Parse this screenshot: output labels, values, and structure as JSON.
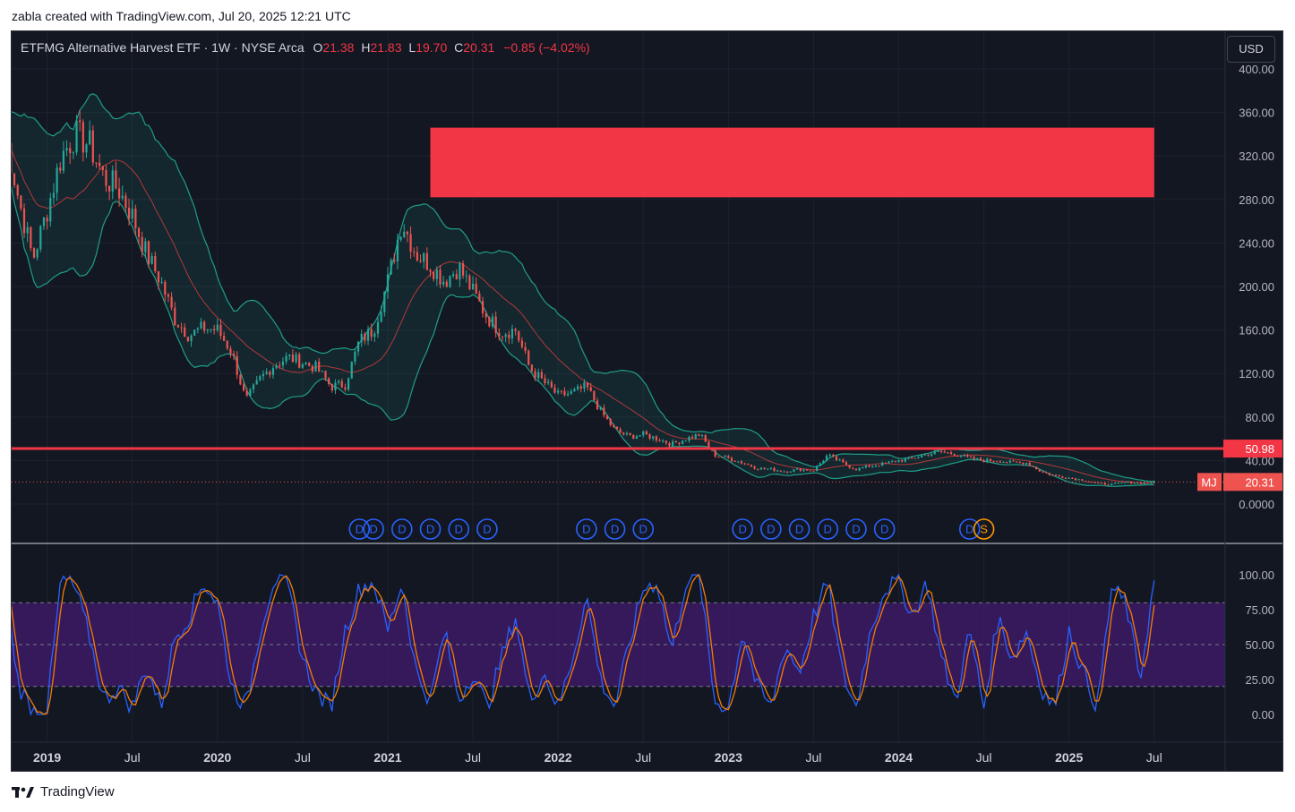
{
  "header": {
    "caption": "zabla created with TradingView.com, Jul 20, 2025 12:21 UTC"
  },
  "legend": {
    "title": "ETFMG Alternative Harvest ETF · 1W · NYSE Arca",
    "open_label": "O",
    "open": "21.38",
    "high_label": "H",
    "high": "21.83",
    "low_label": "L",
    "low": "19.70",
    "close_label": "C",
    "close": "20.31",
    "change": "−0.85 (−4.02%)"
  },
  "currency_button": "USD",
  "footer": {
    "brand": "TradingView"
  },
  "colors": {
    "background": "#131722",
    "up": "#26a69a",
    "down": "#ef5350",
    "alert": "#f23645",
    "band": "#1f9e89",
    "stoch_k": "#2962ff",
    "stoch_d": "#f57c00",
    "stoch_band": "#4a1a7a"
  },
  "chart_data": [
    {
      "type": "candlestick",
      "symbol": "MJ",
      "price_axis": {
        "ticks": [
          "400.00",
          "360.00",
          "320.00",
          "280.00",
          "240.00",
          "200.00",
          "160.00",
          "120.00",
          "80.00",
          "40.00",
          "0.0000"
        ],
        "ylim": [
          0,
          400
        ]
      },
      "time_axis": {
        "ticks": [
          "2019",
          "Jul",
          "2020",
          "Jul",
          "2021",
          "Jul",
          "2022",
          "Jul",
          "2023",
          "Jul",
          "2024",
          "Jul",
          "2025",
          "Jul"
        ]
      },
      "horizontal_line": {
        "value": 50.98,
        "label": "50.98"
      },
      "last_price": {
        "symbol": "MJ",
        "value": 20.31,
        "label": "20.31"
      },
      "zone": {
        "from": "2021-04",
        "to": "2025-07",
        "low": 282,
        "high": 346
      },
      "bollinger_bands": true,
      "approx_close_path": [
        [
          "2018-10",
          345
        ],
        [
          "2018-11",
          280
        ],
        [
          "2018-12",
          225
        ],
        [
          "2019-01",
          270
        ],
        [
          "2019-02",
          320
        ],
        [
          "2019-03",
          340
        ],
        [
          "2019-04",
          330
        ],
        [
          "2019-05",
          300
        ],
        [
          "2019-06",
          290
        ],
        [
          "2019-07",
          265
        ],
        [
          "2019-08",
          230
        ],
        [
          "2019-09",
          205
        ],
        [
          "2019-10",
          170
        ],
        [
          "2019-11",
          155
        ],
        [
          "2019-12",
          162
        ],
        [
          "2020-01",
          160
        ],
        [
          "2020-02",
          140
        ],
        [
          "2020-03",
          95
        ],
        [
          "2020-04",
          115
        ],
        [
          "2020-05",
          128
        ],
        [
          "2020-06",
          135
        ],
        [
          "2020-07",
          130
        ],
        [
          "2020-08",
          125
        ],
        [
          "2020-09",
          108
        ],
        [
          "2020-10",
          110
        ],
        [
          "2020-11",
          150
        ],
        [
          "2020-12",
          160
        ],
        [
          "2021-01",
          205
        ],
        [
          "2021-02",
          260
        ],
        [
          "2021-03",
          230
        ],
        [
          "2021-04",
          220
        ],
        [
          "2021-05",
          205
        ],
        [
          "2021-06",
          218
        ],
        [
          "2021-07",
          195
        ],
        [
          "2021-08",
          172
        ],
        [
          "2021-09",
          158
        ],
        [
          "2021-10",
          160
        ],
        [
          "2021-11",
          125
        ],
        [
          "2021-12",
          112
        ],
        [
          "2022-01",
          100
        ],
        [
          "2022-02",
          102
        ],
        [
          "2022-03",
          108
        ],
        [
          "2022-04",
          85
        ],
        [
          "2022-05",
          68
        ],
        [
          "2022-06",
          62
        ],
        [
          "2022-07",
          64
        ],
        [
          "2022-08",
          60
        ],
        [
          "2022-09",
          55
        ],
        [
          "2022-10",
          60
        ],
        [
          "2022-11",
          64
        ],
        [
          "2022-12",
          45
        ],
        [
          "2023-01",
          42
        ],
        [
          "2023-02",
          38
        ],
        [
          "2023-03",
          33
        ],
        [
          "2023-04",
          32
        ],
        [
          "2023-05",
          30
        ],
        [
          "2023-06",
          32
        ],
        [
          "2023-07",
          31
        ],
        [
          "2023-08",
          45
        ],
        [
          "2023-09",
          38
        ],
        [
          "2023-10",
          32
        ],
        [
          "2023-11",
          35
        ],
        [
          "2023-12",
          37
        ],
        [
          "2024-01",
          40
        ],
        [
          "2024-02",
          42
        ],
        [
          "2024-03",
          46
        ],
        [
          "2024-04",
          48
        ],
        [
          "2024-05",
          46
        ],
        [
          "2024-06",
          42
        ],
        [
          "2024-07",
          40
        ],
        [
          "2024-08",
          40
        ],
        [
          "2024-09",
          38
        ],
        [
          "2024-10",
          38
        ],
        [
          "2024-11",
          30
        ],
        [
          "2024-12",
          26
        ],
        [
          "2025-01",
          24
        ],
        [
          "2025-02",
          22
        ],
        [
          "2025-03",
          19
        ],
        [
          "2025-04",
          18
        ],
        [
          "2025-05",
          20
        ],
        [
          "2025-06",
          19
        ],
        [
          "2025-07",
          20.31
        ]
      ],
      "event_markers": [
        {
          "date": "2020-11",
          "label": "D"
        },
        {
          "date": "2020-12",
          "label": "D"
        },
        {
          "date": "2021-02",
          "label": "D"
        },
        {
          "date": "2021-04",
          "label": "D"
        },
        {
          "date": "2021-06",
          "label": "D"
        },
        {
          "date": "2021-08",
          "label": "D"
        },
        {
          "date": "2022-03",
          "label": "D"
        },
        {
          "date": "2022-05",
          "label": "D"
        },
        {
          "date": "2022-07",
          "label": "D"
        },
        {
          "date": "2023-02",
          "label": "D"
        },
        {
          "date": "2023-04",
          "label": "D"
        },
        {
          "date": "2023-06",
          "label": "D"
        },
        {
          "date": "2023-08",
          "label": "D"
        },
        {
          "date": "2023-10",
          "label": "D"
        },
        {
          "date": "2023-12",
          "label": "D"
        },
        {
          "date": "2024-06",
          "label": "D"
        },
        {
          "date": "2024-07",
          "label": "S"
        }
      ]
    },
    {
      "type": "line",
      "name": "Stochastic",
      "yaxis": {
        "ticks": [
          "100.00",
          "75.00",
          "50.00",
          "25.00",
          "0.00"
        ],
        "ylim": [
          0,
          100
        ]
      },
      "band": [
        20,
        80
      ],
      "approx_k_path": [
        [
          "2018-10",
          95
        ],
        [
          "2018-11",
          20
        ],
        [
          "2018-12",
          3
        ],
        [
          "2019-01",
          5
        ],
        [
          "2019-02",
          98
        ],
        [
          "2019-03",
          90
        ],
        [
          "2019-04",
          55
        ],
        [
          "2019-05",
          10
        ],
        [
          "2019-06",
          20
        ],
        [
          "2019-07",
          5
        ],
        [
          "2019-08",
          35
        ],
        [
          "2019-09",
          5
        ],
        [
          "2019-10",
          55
        ],
        [
          "2019-11",
          70
        ],
        [
          "2019-12",
          95
        ],
        [
          "2020-01",
          80
        ],
        [
          "2020-02",
          20
        ],
        [
          "2020-03",
          5
        ],
        [
          "2020-04",
          60
        ],
        [
          "2020-05",
          98
        ],
        [
          "2020-06",
          90
        ],
        [
          "2020-07",
          40
        ],
        [
          "2020-08",
          15
        ],
        [
          "2020-09",
          5
        ],
        [
          "2020-10",
          60
        ],
        [
          "2020-11",
          90
        ],
        [
          "2020-12",
          95
        ],
        [
          "2021-01",
          60
        ],
        [
          "2021-02",
          95
        ],
        [
          "2021-03",
          30
        ],
        [
          "2021-04",
          10
        ],
        [
          "2021-05",
          60
        ],
        [
          "2021-06",
          10
        ],
        [
          "2021-07",
          30
        ],
        [
          "2021-08",
          5
        ],
        [
          "2021-09",
          40
        ],
        [
          "2021-10",
          70
        ],
        [
          "2021-11",
          10
        ],
        [
          "2021-12",
          30
        ],
        [
          "2022-01",
          5
        ],
        [
          "2022-02",
          40
        ],
        [
          "2022-03",
          85
        ],
        [
          "2022-04",
          25
        ],
        [
          "2022-05",
          5
        ],
        [
          "2022-06",
          50
        ],
        [
          "2022-07",
          90
        ],
        [
          "2022-08",
          95
        ],
        [
          "2022-09",
          45
        ],
        [
          "2022-10",
          95
        ],
        [
          "2022-11",
          98
        ],
        [
          "2022-12",
          10
        ],
        [
          "2023-01",
          5
        ],
        [
          "2023-02",
          60
        ],
        [
          "2023-03",
          20
        ],
        [
          "2023-04",
          5
        ],
        [
          "2023-05",
          50
        ],
        [
          "2023-06",
          30
        ],
        [
          "2023-07",
          70
        ],
        [
          "2023-08",
          95
        ],
        [
          "2023-09",
          30
        ],
        [
          "2023-10",
          5
        ],
        [
          "2023-11",
          60
        ],
        [
          "2023-12",
          90
        ],
        [
          "2024-01",
          95
        ],
        [
          "2024-02",
          70
        ],
        [
          "2024-03",
          95
        ],
        [
          "2024-04",
          40
        ],
        [
          "2024-05",
          10
        ],
        [
          "2024-06",
          60
        ],
        [
          "2024-07",
          5
        ],
        [
          "2024-08",
          70
        ],
        [
          "2024-09",
          40
        ],
        [
          "2024-10",
          60
        ],
        [
          "2024-11",
          20
        ],
        [
          "2024-12",
          5
        ],
        [
          "2025-01",
          60
        ],
        [
          "2025-02",
          30
        ],
        [
          "2025-03",
          5
        ],
        [
          "2025-04",
          90
        ],
        [
          "2025-05",
          80
        ],
        [
          "2025-06",
          25
        ],
        [
          "2025-07",
          95
        ]
      ]
    }
  ]
}
